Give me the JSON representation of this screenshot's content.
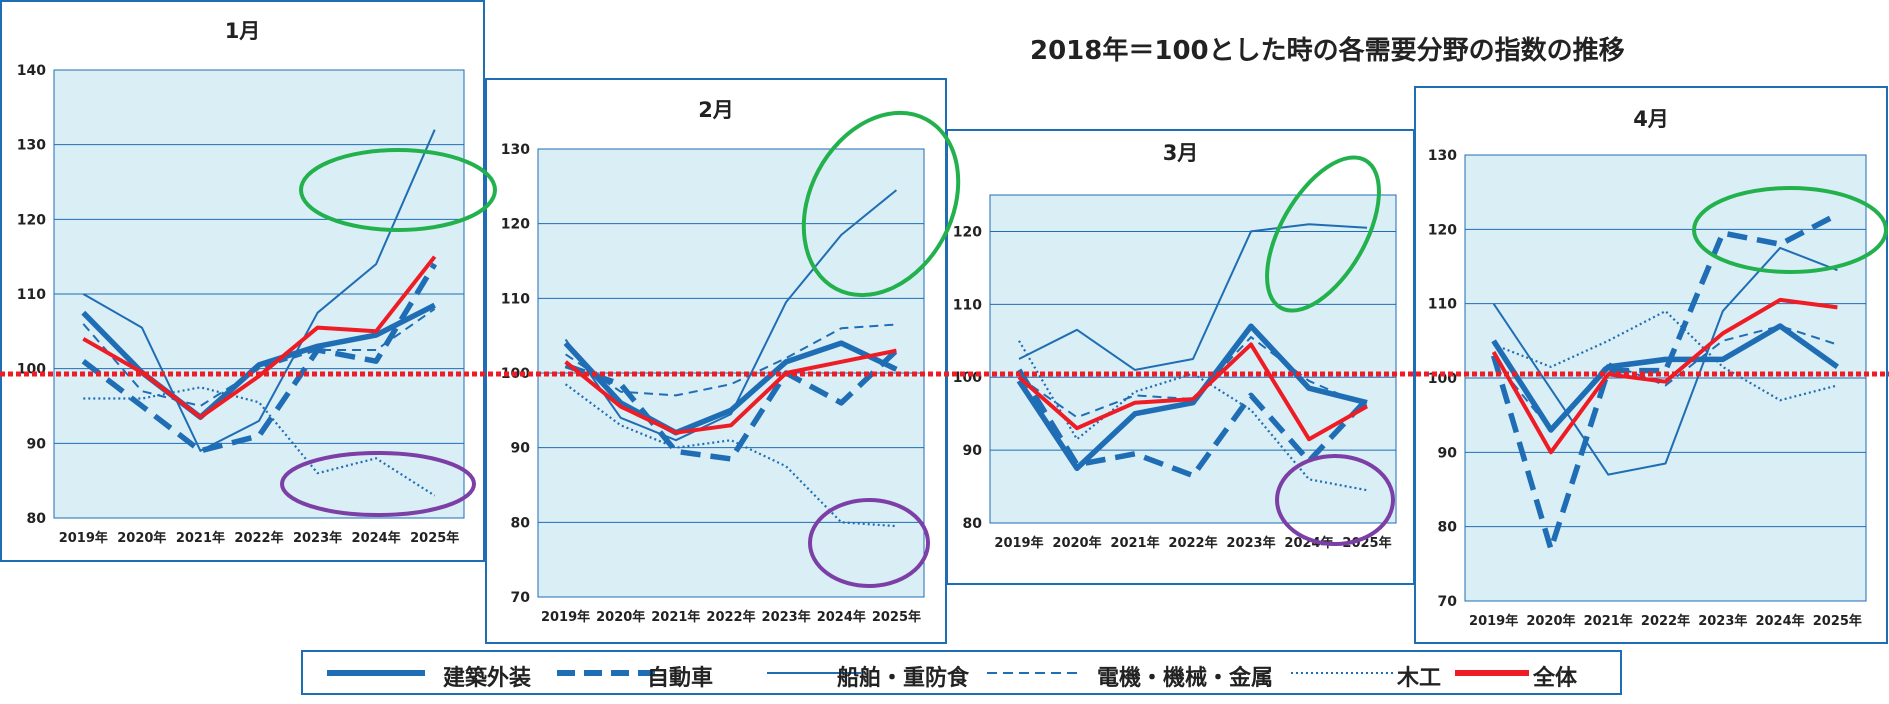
{
  "title": "2018年＝100とした時の各需要分野の指数の推移",
  "legend": [
    {
      "key": "kenchiku",
      "label": "建築外装"
    },
    {
      "key": "jidosha",
      "label": "自動車"
    },
    {
      "key": "senpaku",
      "label": "船舶・重防食"
    },
    {
      "key": "denki",
      "label": "電機・機械・金属"
    },
    {
      "key": "mokko",
      "label": "木工"
    },
    {
      "key": "zentai",
      "label": "全体"
    }
  ],
  "colors": {
    "series": "#1f6eb5",
    "total": "#ee1c25",
    "plot_bg": "#daeef5",
    "reference": "#ee1c25",
    "highlight_up": "#22b14c",
    "highlight_down": "#7b3fa6"
  },
  "chart_data": [
    {
      "type": "line",
      "title": "1月",
      "ylim": [
        80,
        140
      ],
      "yticks": [
        80,
        90,
        100,
        110,
        120,
        130,
        140
      ],
      "categories": [
        "2019年",
        "2020年",
        "2021年",
        "2022年",
        "2023年",
        "2024年",
        "2025年"
      ],
      "series": [
        {
          "name": "建築外装",
          "values": [
            107.5,
            99.5,
            93.5,
            100.5,
            103,
            104.5,
            108.5
          ]
        },
        {
          "name": "自動車",
          "values": [
            101,
            95,
            89,
            91,
            102.5,
            101,
            114
          ]
        },
        {
          "name": "船舶・重防食",
          "values": [
            110,
            105.5,
            89,
            93,
            107.5,
            114,
            132
          ]
        },
        {
          "name": "電機・機械・金属",
          "values": [
            106,
            97,
            95,
            100,
            102.5,
            102.5,
            108
          ]
        },
        {
          "name": "木工",
          "values": [
            96,
            96,
            97.5,
            95.5,
            86,
            88,
            83
          ]
        },
        {
          "name": "全体",
          "values": [
            104,
            99.5,
            93.5,
            99,
            105.5,
            105,
            115
          ]
        }
      ]
    },
    {
      "type": "line",
      "title": "2月",
      "ylim": [
        70,
        130
      ],
      "yticks": [
        70,
        80,
        90,
        100,
        110,
        120,
        130
      ],
      "categories": [
        "2019年",
        "2020年",
        "2021年",
        "2022年",
        "2023年",
        "2024年",
        "2025年"
      ],
      "series": [
        {
          "name": "建築外装",
          "values": [
            104,
            96,
            92,
            95,
            101.5,
            104,
            100.5
          ]
        },
        {
          "name": "自動車",
          "values": [
            101,
            98.5,
            89.5,
            88.5,
            100,
            96,
            103
          ]
        },
        {
          "name": "船舶・重防食",
          "values": [
            104.5,
            94,
            91,
            94.5,
            109.5,
            118.5,
            124.5
          ]
        },
        {
          "name": "電機・機械・金属",
          "values": [
            102.5,
            97.5,
            97,
            98.5,
            102,
            106,
            106.5
          ]
        },
        {
          "name": "木工",
          "values": [
            98.5,
            93,
            90,
            91,
            87.5,
            80,
            79.5
          ]
        },
        {
          "name": "全体",
          "values": [
            101.5,
            95.5,
            92,
            93,
            100,
            101.5,
            103
          ]
        }
      ]
    },
    {
      "type": "line",
      "title": "3月",
      "ylim": [
        80,
        125
      ],
      "yticks": [
        80,
        90,
        100,
        110,
        120
      ],
      "categories": [
        "2019年",
        "2020年",
        "2021年",
        "2022年",
        "2023年",
        "2024年",
        "2025年"
      ],
      "series": [
        {
          "name": "建築外装",
          "values": [
            99.5,
            87.5,
            95,
            96.5,
            107,
            98.5,
            96.5
          ]
        },
        {
          "name": "自動車",
          "values": [
            101,
            88,
            89.5,
            86.5,
            97.5,
            88.5,
            97
          ]
        },
        {
          "name": "船舶・重防食",
          "values": [
            102.5,
            106.5,
            101,
            102.5,
            120,
            121,
            120.5
          ]
        },
        {
          "name": "電機・機械・金属",
          "values": [
            100,
            94.5,
            97.5,
            97,
            105.5,
            99.5,
            96
          ]
        },
        {
          "name": "木工",
          "values": [
            105,
            91.5,
            98,
            100.5,
            95.5,
            86,
            84.5
          ]
        },
        {
          "name": "全体",
          "values": [
            100,
            93,
            96.5,
            97,
            104.5,
            91.5,
            96
          ]
        }
      ]
    },
    {
      "type": "line",
      "title": "4月",
      "ylim": [
        70,
        130
      ],
      "yticks": [
        70,
        80,
        90,
        100,
        110,
        120,
        130
      ],
      "categories": [
        "2019年",
        "2020年",
        "2021年",
        "2022年",
        "2023年",
        "2024年",
        "2025年"
      ],
      "series": [
        {
          "name": "建築外装",
          "values": [
            105,
            93,
            101.5,
            102.5,
            102.5,
            107,
            101.5
          ]
        },
        {
          "name": "自動車",
          "values": [
            103,
            77,
            101,
            101,
            119.5,
            118,
            122
          ]
        },
        {
          "name": "船舶・重防食",
          "values": [
            110,
            98.5,
            87,
            88.5,
            109,
            117.5,
            114.5
          ]
        },
        {
          "name": "電機・機械・金属",
          "values": [
            102.5,
            93,
            102,
            99,
            105,
            107,
            104.5
          ]
        },
        {
          "name": "木工",
          "values": [
            104.5,
            101.5,
            105,
            109,
            101.5,
            97,
            99
          ]
        },
        {
          "name": "全体",
          "values": [
            103.5,
            90,
            100.5,
            99.5,
            106,
            110.5,
            109.5
          ]
        }
      ]
    }
  ]
}
